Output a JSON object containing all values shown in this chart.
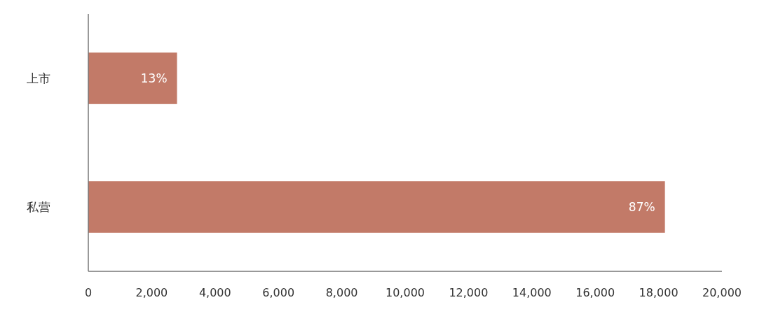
{
  "chart_data": {
    "type": "bar",
    "orientation": "horizontal",
    "categories": [
      "上市",
      "私营"
    ],
    "values": [
      2800,
      18200
    ],
    "annotations": [
      {
        "text": "13%",
        "x": 2800,
        "y": "上市"
      },
      {
        "text": "87%",
        "x": 18200,
        "y": "私营"
      }
    ],
    "color": "#c27a68",
    "xlim": [
      0,
      20000
    ],
    "xticks": [
      0,
      {
        "value": 2000,
        "label": "2,000"
      },
      {
        "value": 4000,
        "label": "4,000"
      },
      {
        "value": 6000,
        "label": "6,000"
      },
      {
        "value": 8000,
        "label": "8,000"
      },
      {
        "value": 10000,
        "label": "10,000"
      },
      {
        "value": 12000,
        "label": "12,000"
      },
      {
        "value": 14000,
        "label": "14,000"
      },
      {
        "value": 16000,
        "label": "16,000"
      },
      {
        "value": 18000,
        "label": "18,000"
      },
      {
        "value": 20000,
        "label": "20,000"
      }
    ],
    "grid": false
  }
}
